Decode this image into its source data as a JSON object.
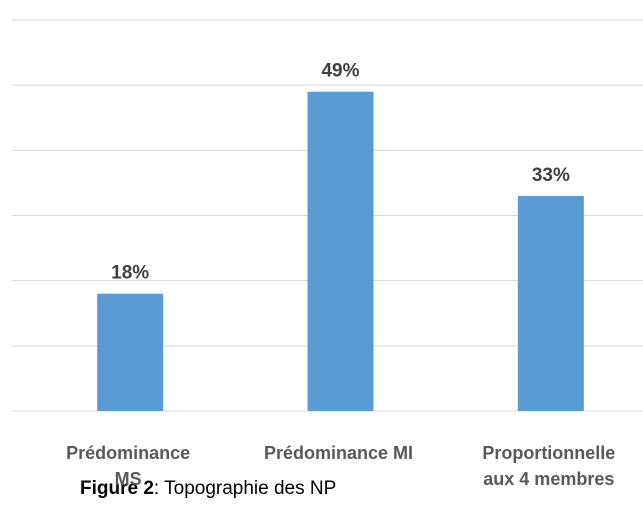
{
  "chart_data": {
    "type": "bar",
    "categories": [
      "Prédominance MS",
      "Prédominance MI",
      "Proportionnelle aux 4 membres"
    ],
    "values": [
      18,
      49,
      33
    ],
    "value_labels": [
      "18%",
      "49%",
      "33%"
    ],
    "color": "#5b9bd5",
    "ylim": [
      0,
      60
    ],
    "yticks": [
      0,
      10,
      20,
      30,
      40,
      50,
      60
    ],
    "grid": true,
    "caption_label": "Figure 2",
    "caption": ": Topographie des NP"
  }
}
